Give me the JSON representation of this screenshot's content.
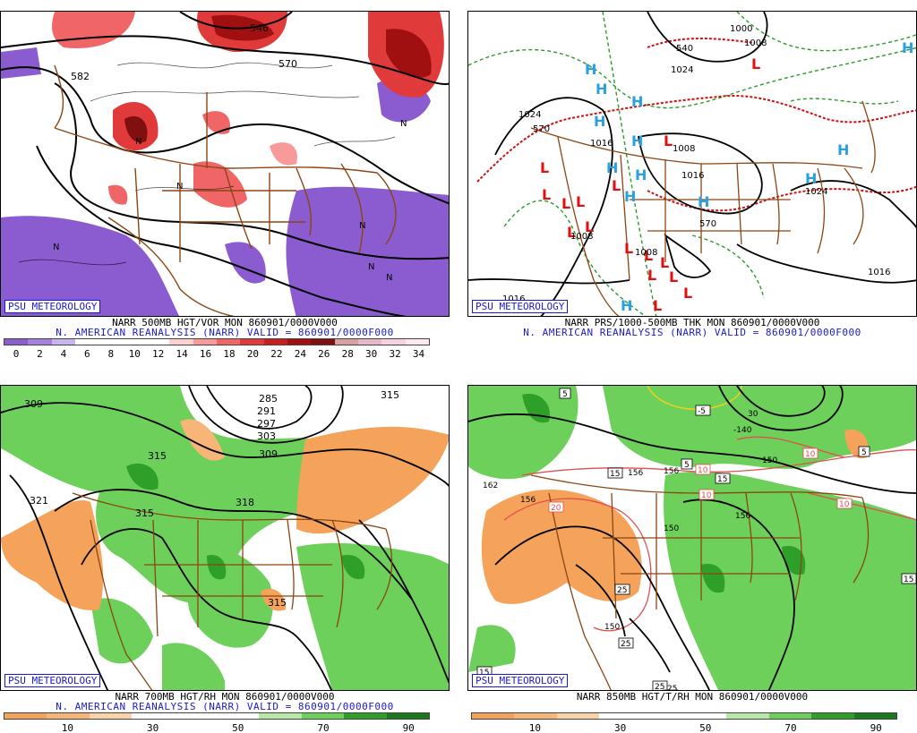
{
  "psu_label": "PSU METEOROLOGY",
  "panels": [
    {
      "title": "NARR 500MB HGT/VOR MON 860901/0000V000",
      "subtitle": "N. AMERICAN REANALYSIS (NARR) VALID = 860901/0000F000",
      "colorbar": [
        "#8a5cd0",
        "#a77fe0",
        "#c8b4ee",
        "#ffffff",
        "#ffffff",
        "#ffffff",
        "#ffffff",
        "#ffd0d0",
        "#f89a9a",
        "#f06666",
        "#e03a3a",
        "#c81e1e",
        "#a01010",
        "#801010",
        "#d8a0a0",
        "#e8b8c8",
        "#f8d0e0",
        "#ffe8f0"
      ],
      "colorbar_labels": [
        "0",
        "2",
        "4",
        "6",
        "8",
        "10",
        "12",
        "14",
        "16",
        "18",
        "20",
        "22",
        "24",
        "26",
        "28",
        "30",
        "32",
        "34"
      ],
      "contour_labels": [
        "546",
        "570",
        "582"
      ]
    },
    {
      "title": "NARR PRS/1000-500MB THK MON 860901/0000V000",
      "subtitle": "N. AMERICAN REANALYSIS (NARR) VALID = 860901/0000F000",
      "contour_labels": [
        "1000",
        "1008",
        "540",
        "1024",
        "1024",
        "570",
        "1016",
        "1008",
        "1016",
        "1024",
        "570",
        "1008",
        "1008",
        "1016",
        "1016"
      ]
    },
    {
      "title": "NARR 700MB HGT/RH MON 860901/0000V000",
      "subtitle": "N. AMERICAN REANALYSIS (NARR) VALID = 860901/0000F000",
      "colorbar": [
        "#f5a35a",
        "#f7b678",
        "#fbd3a8",
        "#ffffff",
        "#ffffff",
        "#ffffff",
        "#b8e8a8",
        "#6cd05a",
        "#2ea02a",
        "#1a7a1a"
      ],
      "colorbar_labels": [
        "10",
        "30",
        "50",
        "70",
        "90"
      ],
      "contour_labels": [
        "309",
        "285",
        "291",
        "297",
        "303",
        "309",
        "315",
        "318",
        "315",
        "321",
        "315",
        "315"
      ]
    },
    {
      "title": "NARR 850MB HGT/T/RH MON 860901/0000V000",
      "colorbar": [
        "#f5a35a",
        "#f7b678",
        "#fbd3a8",
        "#ffffff",
        "#ffffff",
        "#ffffff",
        "#b8e8a8",
        "#6cd05a",
        "#2ea02a",
        "#1a7a1a"
      ],
      "colorbar_labels": [
        "10",
        "30",
        "50",
        "70",
        "90"
      ],
      "contour_labels": [
        "5",
        "-5",
        "30",
        "-140",
        "150",
        "162",
        "156",
        "15",
        "156",
        "5",
        "10",
        "15",
        "10",
        "10",
        "156",
        "5",
        "10",
        "20",
        "156",
        "150",
        "25",
        "25",
        "25",
        "25",
        "15",
        "150",
        "15"
      ]
    }
  ]
}
